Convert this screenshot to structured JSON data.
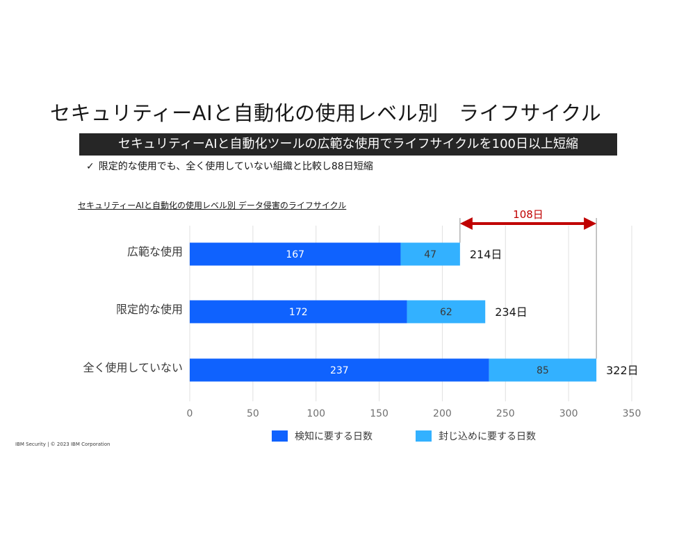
{
  "slide": {
    "title": "セキュリティーAIと自動化の使用レベル別　ライフサイクル",
    "banner": "セキュリティーAIと自動化ツールの広範な使用でライフサイクルを100日以上短縮",
    "note_check": "✓",
    "note": "限定的な使用でも、全く使用していない組織と比較し88日短縮",
    "chart_title": "セキュリティーAIと自動化の使用レベル別 データ侵害のライフサイクル",
    "footer": "IBM Security | © 2023 IBM Corporation"
  },
  "colors": {
    "detect": "#0f62fe",
    "contain": "#33b1ff",
    "bracket": "#c00000",
    "axis_text": "#6f6f6f",
    "grid": "#e0e0e0"
  },
  "chart_data": {
    "type": "bar",
    "orientation": "horizontal",
    "stacked": true,
    "title": "セキュリティーAIと自動化の使用レベル別 データ侵害のライフサイクル",
    "categories": [
      "広範な使用",
      "限定的な使用",
      "全く使用していない"
    ],
    "series": [
      {
        "name": "検知に要する日数",
        "values": [
          167,
          172,
          237
        ]
      },
      {
        "name": "封じ込めに要する日数",
        "values": [
          47,
          62,
          85
        ]
      }
    ],
    "totals": [
      "214日",
      "234日",
      "322日"
    ],
    "xlim": [
      0,
      350
    ],
    "xticks": [
      0,
      50,
      100,
      150,
      200,
      250,
      300,
      350
    ],
    "grid": true,
    "legend": "bottom",
    "annotation": {
      "label": "108日",
      "from": 214,
      "to": 322
    }
  }
}
